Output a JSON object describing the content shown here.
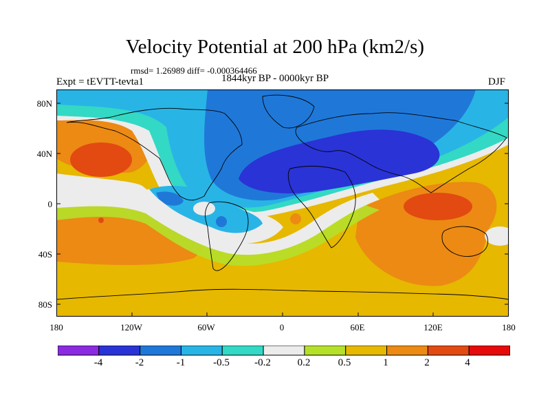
{
  "title": "Velocity Potential at 200 hPa (km2/s)",
  "stats_line": "rmsd= 1.26989 diff= -0.000364466",
  "left_label": "Expt = tEVTT-tevta1",
  "center_label": "1844kyr BP - 0000kyr BP",
  "right_label": "DJF",
  "lat_labels": [
    "80N",
    "40N",
    "0",
    "40S",
    "80S"
  ],
  "lon_labels": [
    "180",
    "120W",
    "60W",
    "0",
    "60E",
    "120E",
    "180"
  ],
  "colorbar": {
    "colors": [
      "#8a2be2",
      "#2a33d6",
      "#1f78d8",
      "#29b4e6",
      "#33d9c4",
      "#ececec",
      "#b5e02a",
      "#e6b800",
      "#ec8a14",
      "#e24a12",
      "#e60a0a"
    ],
    "labels": [
      "-4",
      "-2",
      "-1",
      "-0.5",
      "-0.2",
      "0.2",
      "0.5",
      "1",
      "2",
      "4"
    ]
  }
}
